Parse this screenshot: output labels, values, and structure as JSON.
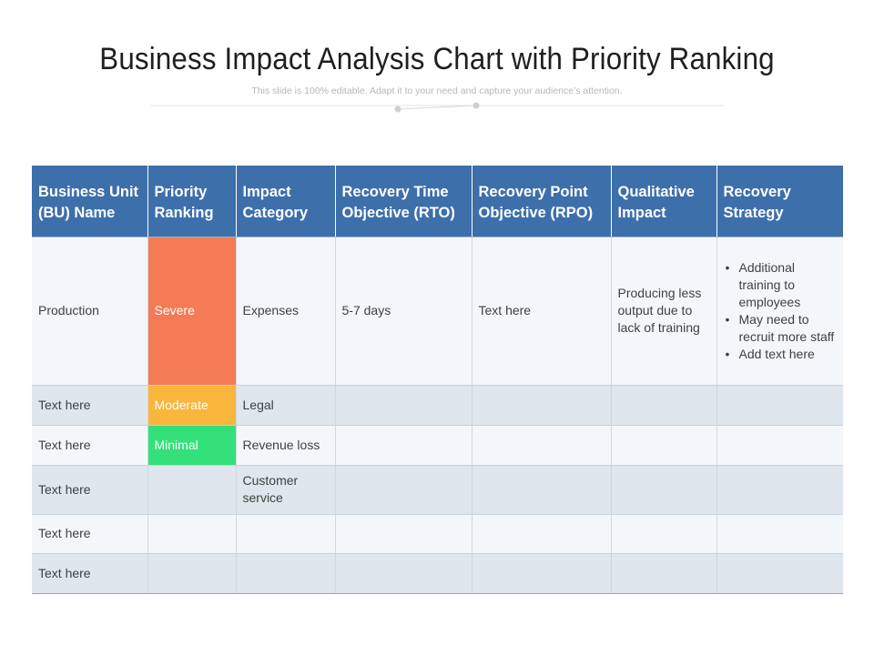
{
  "title": "Business Impact Analysis Chart with Priority Ranking",
  "subtitle": "This slide is 100% editable. Adapt it to your need and capture your audience’s attention.",
  "colors": {
    "header_bg": "#3d6fab",
    "severe": "#f47b55",
    "moderate": "#f8b63c",
    "minimal": "#34e07a"
  },
  "table": {
    "headers": [
      "Business Unit (BU) Name",
      "Priority Ranking",
      "Impact Category",
      "Recovery Time Objective (RTO)",
      "Recovery Point Objective (RPO)",
      "Qualitative Impact",
      "Recovery Strategy"
    ],
    "rows": [
      {
        "bu": "Production",
        "priority": "Severe",
        "category": "Expenses",
        "rto": "5-7 days",
        "rpo": "Text here",
        "qualitative": "Producing less output due to lack of training",
        "strategy": [
          "Additional training to employees",
          "May need to recruit more staff",
          "Add text here"
        ]
      },
      {
        "bu": "Text here",
        "priority": "Moderate",
        "category": "Legal"
      },
      {
        "bu": "Text here",
        "priority": "Minimal",
        "category": "Revenue loss"
      },
      {
        "bu": "Text here",
        "category": "Customer service"
      },
      {
        "bu": "Text here"
      },
      {
        "bu": "Text here"
      }
    ]
  }
}
